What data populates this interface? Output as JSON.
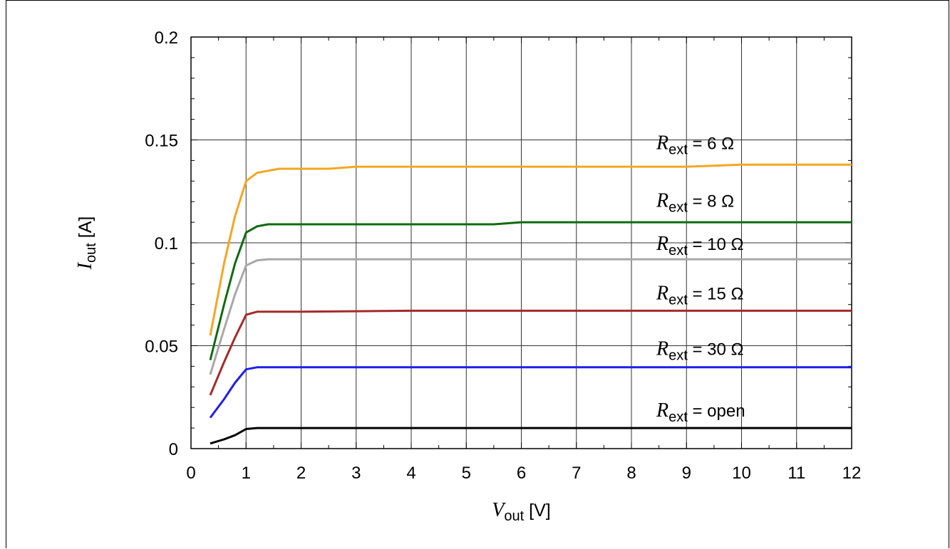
{
  "chart_data": {
    "type": "line",
    "xlabel": {
      "sym": "V",
      "sub": "out",
      "unit": " [V]"
    },
    "ylabel": {
      "sym": "I",
      "sub": "out",
      "unit": " [A]"
    },
    "xlim": [
      0,
      12
    ],
    "ylim": [
      0,
      0.2
    ],
    "xticks": [
      "0",
      "1",
      "2",
      "3",
      "4",
      "5",
      "6",
      "7",
      "8",
      "9",
      "10",
      "11",
      "12"
    ],
    "yticks": [
      "0",
      "0.05",
      "0.1",
      "0.15",
      "0.2"
    ],
    "grid": true,
    "series": [
      {
        "name": {
          "sym": "R",
          "sub": "ext",
          "rest": " = 6 Ω"
        },
        "color": "#f5a623",
        "points": [
          [
            0.35,
            0.055
          ],
          [
            0.6,
            0.09
          ],
          [
            0.8,
            0.113
          ],
          [
            1.0,
            0.13
          ],
          [
            1.2,
            0.134
          ],
          [
            1.6,
            0.136
          ],
          [
            2.0,
            0.136
          ],
          [
            2.5,
            0.136
          ],
          [
            3.0,
            0.137
          ],
          [
            5.0,
            0.137
          ],
          [
            7.0,
            0.137
          ],
          [
            9.0,
            0.137
          ],
          [
            10.0,
            0.138
          ],
          [
            12.0,
            0.138
          ]
        ]
      },
      {
        "name": {
          "sym": "R",
          "sub": "ext",
          "rest": " = 8 Ω"
        },
        "color": "#0f6b0f",
        "points": [
          [
            0.35,
            0.043
          ],
          [
            0.6,
            0.07
          ],
          [
            0.8,
            0.09
          ],
          [
            1.0,
            0.105
          ],
          [
            1.2,
            0.108
          ],
          [
            1.4,
            0.109
          ],
          [
            2.0,
            0.109
          ],
          [
            3.0,
            0.109
          ],
          [
            5.5,
            0.109
          ],
          [
            6.0,
            0.11
          ],
          [
            8.0,
            0.11
          ],
          [
            12.0,
            0.11
          ]
        ]
      },
      {
        "name": {
          "sym": "R",
          "sub": "ext",
          "rest": " = 10 Ω"
        },
        "color": "#a8a8a8",
        "points": [
          [
            0.35,
            0.036
          ],
          [
            0.6,
            0.058
          ],
          [
            0.8,
            0.075
          ],
          [
            1.0,
            0.089
          ],
          [
            1.2,
            0.0915
          ],
          [
            1.4,
            0.092
          ],
          [
            2.0,
            0.092
          ],
          [
            6.0,
            0.092
          ],
          [
            12.0,
            0.092
          ]
        ]
      },
      {
        "name": {
          "sym": "R",
          "sub": "ext",
          "rest": " = 15 Ω"
        },
        "color": "#a52a2a",
        "points": [
          [
            0.35,
            0.026
          ],
          [
            0.6,
            0.042
          ],
          [
            0.8,
            0.054
          ],
          [
            1.0,
            0.065
          ],
          [
            1.2,
            0.0665
          ],
          [
            2.0,
            0.0665
          ],
          [
            4.0,
            0.067
          ],
          [
            12.0,
            0.067
          ]
        ]
      },
      {
        "name": {
          "sym": "R",
          "sub": "ext",
          "rest": " = 30 Ω"
        },
        "color": "#1f1fe6",
        "points": [
          [
            0.35,
            0.015
          ],
          [
            0.6,
            0.024
          ],
          [
            0.8,
            0.032
          ],
          [
            1.0,
            0.0385
          ],
          [
            1.2,
            0.0395
          ],
          [
            2.0,
            0.0395
          ],
          [
            12.0,
            0.0395
          ]
        ]
      },
      {
        "name": {
          "sym": "R",
          "sub": "ext",
          "rest": " = open"
        },
        "color": "#000000",
        "points": [
          [
            0.35,
            0.0025
          ],
          [
            0.6,
            0.0045
          ],
          [
            0.8,
            0.0065
          ],
          [
            1.0,
            0.0095
          ],
          [
            1.2,
            0.01
          ],
          [
            2.0,
            0.01
          ],
          [
            12.0,
            0.01
          ]
        ]
      }
    ]
  }
}
